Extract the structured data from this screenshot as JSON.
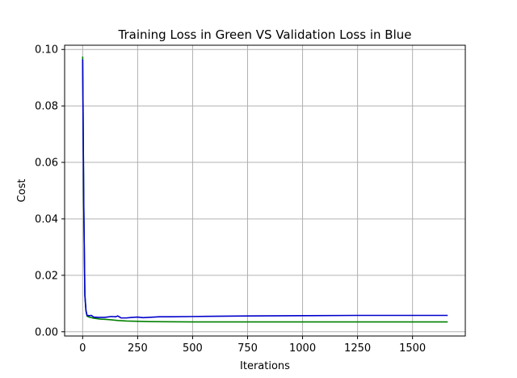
{
  "chart_data": {
    "type": "line",
    "title": "Training Loss in Green VS Validation Loss in Blue",
    "xlabel": "Iterations",
    "ylabel": "Cost",
    "xlim": [
      -82,
      1740
    ],
    "ylim": [
      -0.0015,
      0.1015
    ],
    "grid": true,
    "x_ticks": [
      0,
      250,
      500,
      750,
      1000,
      1250,
      1500
    ],
    "y_ticks": [
      0.0,
      0.02,
      0.04,
      0.06,
      0.08,
      0.1
    ],
    "x_tick_labels": [
      "0",
      "250",
      "500",
      "750",
      "1000",
      "1250",
      "1500"
    ],
    "y_tick_labels": [
      "0.00",
      "0.02",
      "0.04",
      "0.06",
      "0.08",
      "0.10"
    ],
    "series": [
      {
        "color": "#008000",
        "x": [
          0,
          5,
          10,
          15,
          20,
          30,
          50,
          80,
          120,
          160,
          200,
          300,
          500,
          750,
          1000,
          1250,
          1500,
          1660
        ],
        "y": [
          0.0975,
          0.045,
          0.013,
          0.0075,
          0.0055,
          0.0052,
          0.0048,
          0.0045,
          0.0043,
          0.004,
          0.0038,
          0.0036,
          0.0035,
          0.0035,
          0.0035,
          0.0035,
          0.0035,
          0.0035
        ]
      },
      {
        "color": "#0000cc",
        "x": [
          0,
          5,
          10,
          15,
          20,
          30,
          40,
          50,
          70,
          100,
          130,
          150,
          160,
          175,
          200,
          225,
          250,
          275,
          300,
          350,
          400,
          500,
          600,
          750,
          1000,
          1250,
          1500,
          1660
        ],
        "y": [
          0.0965,
          0.045,
          0.013,
          0.0075,
          0.0058,
          0.0057,
          0.0058,
          0.0052,
          0.0051,
          0.0051,
          0.0054,
          0.0053,
          0.0056,
          0.0049,
          0.0049,
          0.0051,
          0.0052,
          0.005,
          0.0051,
          0.0053,
          0.0053,
          0.0054,
          0.0055,
          0.0056,
          0.0057,
          0.0058,
          0.0058,
          0.0058
        ]
      }
    ]
  }
}
